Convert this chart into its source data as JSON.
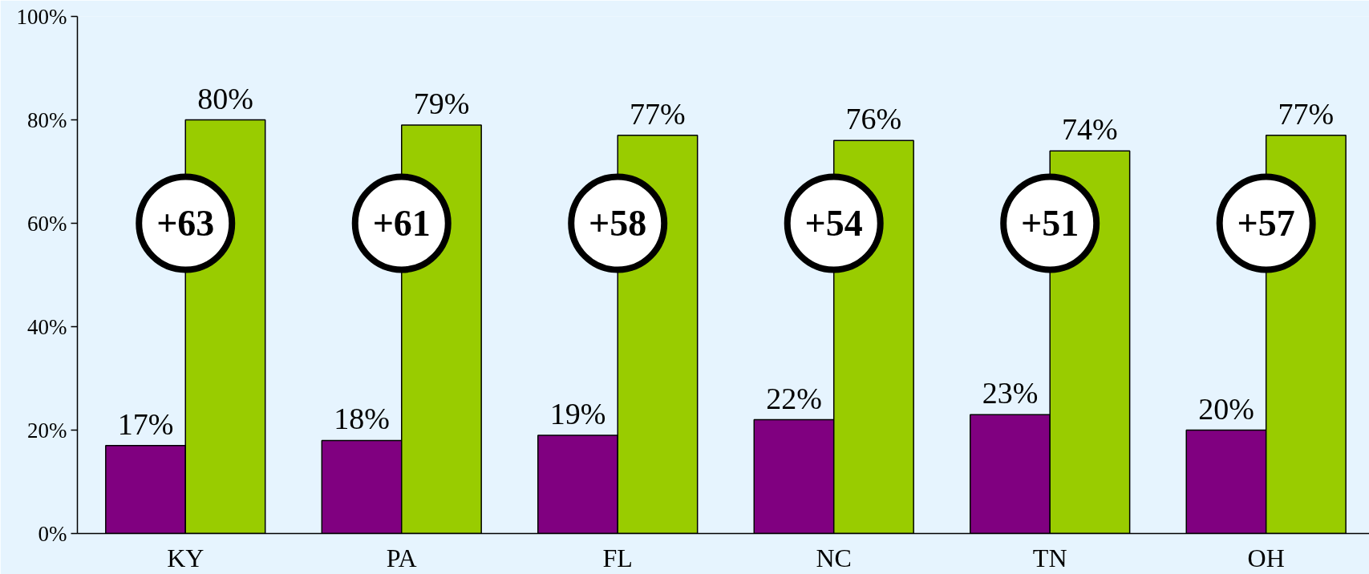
{
  "chart_data": {
    "type": "bar",
    "categories": [
      "KY",
      "PA",
      "FL",
      "NC",
      "TN",
      "OH"
    ],
    "series": [
      {
        "color": "#800080",
        "values": [
          17,
          18,
          19,
          22,
          23,
          20
        ],
        "value_labels": [
          "17%",
          "18%",
          "19%",
          "22%",
          "23%",
          "20%"
        ]
      },
      {
        "color": "#99cc00",
        "values": [
          80,
          79,
          77,
          76,
          74,
          77
        ],
        "value_labels": [
          "80%",
          "79%",
          "77%",
          "76%",
          "74%",
          "77%"
        ]
      }
    ],
    "ylim": [
      0,
      100
    ],
    "yticks": [
      {
        "value": 0,
        "label": "0%"
      },
      {
        "value": 20,
        "label": "20%"
      },
      {
        "value": 40,
        "label": "40%"
      },
      {
        "value": 60,
        "label": "60%"
      },
      {
        "value": 80,
        "label": "80%"
      },
      {
        "value": 100,
        "label": "100%"
      }
    ],
    "grid": false,
    "annotations": [
      {
        "text": "+63",
        "x": "KY",
        "y": 60
      },
      {
        "text": "+61",
        "x": "PA",
        "y": 60
      },
      {
        "text": "+58",
        "x": "FL",
        "y": 60
      },
      {
        "text": "+54",
        "x": "NC",
        "y": 60
      },
      {
        "text": "+51",
        "x": "TN",
        "y": 60
      },
      {
        "text": "+57",
        "x": "OH",
        "y": 60
      }
    ]
  }
}
